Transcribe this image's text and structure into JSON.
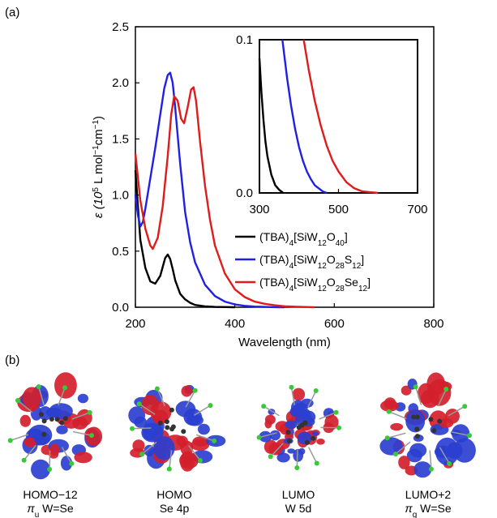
{
  "panel_a_label": "(a)",
  "panel_b_label": "(b)",
  "colors": {
    "SiW12O40": "#000000",
    "SiW12O28S12": "#1f1fe6",
    "SiW12O28Se12": "#e01b1b",
    "lobe_red": "#d3202c",
    "lobe_blue": "#2b3fcf",
    "atom_green": "#38c936",
    "atom_dark": "#333333"
  },
  "chart_data": [
    {
      "type": "line",
      "xlabel": "Wavelength (nm)",
      "ylabel_main": "ε (10",
      "ylabel_sup1": "5",
      "ylabel_mid": " L mol",
      "ylabel_sup2": "−1",
      "ylabel_cm": "cm",
      "ylabel_sup3": "−1",
      "ylabel_end": ")",
      "xlim": [
        200,
        800
      ],
      "ylim": [
        0,
        2.5
      ],
      "xticks": [
        "200",
        "400",
        "600",
        "800"
      ],
      "yticks": [
        "0.0",
        "0.5",
        "1.0",
        "1.5",
        "2.0",
        "2.5"
      ],
      "xtick_values": [
        200,
        400,
        600,
        800
      ],
      "ytick_values": [
        0,
        0.5,
        1.0,
        1.5,
        2.0,
        2.5
      ],
      "series": [
        {
          "name_parts": [
            "(TBA)",
            "4",
            "[SiW",
            "12",
            "O",
            "40",
            "]"
          ],
          "color_key": "SiW12O40",
          "x": [
            200,
            210,
            220,
            230,
            240,
            250,
            255,
            260,
            265,
            270,
            275,
            280,
            290,
            300,
            310,
            320,
            340,
            360,
            400
          ],
          "y": [
            1.22,
            0.6,
            0.35,
            0.23,
            0.21,
            0.28,
            0.36,
            0.44,
            0.47,
            0.43,
            0.34,
            0.24,
            0.12,
            0.07,
            0.04,
            0.02,
            0.008,
            0.003,
            0.0
          ]
        },
        {
          "name_parts": [
            "(TBA)",
            "4",
            "[SiW",
            "12",
            "O",
            "28",
            "S",
            "12",
            "]"
          ],
          "color_key": "SiW12O28S12",
          "x": [
            200,
            205,
            210,
            215,
            220,
            230,
            240,
            250,
            258,
            265,
            270,
            275,
            280,
            290,
            300,
            310,
            320,
            340,
            360,
            380,
            400,
            420,
            440,
            460,
            480,
            500
          ],
          "y": [
            1.0,
            0.82,
            0.72,
            0.76,
            0.88,
            1.15,
            1.42,
            1.72,
            1.95,
            2.07,
            2.09,
            2.0,
            1.78,
            1.28,
            0.85,
            0.58,
            0.4,
            0.2,
            0.1,
            0.05,
            0.025,
            0.012,
            0.006,
            0.003,
            0.001,
            0.0
          ]
        },
        {
          "name_parts": [
            "(TBA)",
            "4",
            "[SiW",
            "12",
            "O",
            "28",
            "Se",
            "12",
            "]"
          ],
          "color_key": "SiW12O28Se12",
          "x": [
            200,
            210,
            220,
            230,
            235,
            245,
            255,
            265,
            272,
            278,
            285,
            292,
            298,
            305,
            312,
            317,
            322,
            330,
            340,
            350,
            360,
            380,
            400,
            420,
            440,
            460,
            480,
            500,
            520,
            540,
            560
          ],
          "y": [
            1.37,
            0.95,
            0.7,
            0.55,
            0.52,
            0.62,
            0.9,
            1.35,
            1.72,
            1.88,
            1.84,
            1.68,
            1.64,
            1.78,
            1.94,
            1.96,
            1.84,
            1.48,
            1.08,
            0.78,
            0.55,
            0.3,
            0.16,
            0.09,
            0.05,
            0.03,
            0.017,
            0.009,
            0.005,
            0.002,
            0.0
          ]
        }
      ]
    },
    {
      "type": "line",
      "role": "inset",
      "xlim": [
        300,
        700
      ],
      "ylim": [
        0,
        0.1
      ],
      "xticks": [
        "300",
        "500",
        "700"
      ],
      "yticks": [
        "0.0",
        "0.1"
      ],
      "xtick_values": [
        300,
        500,
        700
      ],
      "ytick_values": [
        0,
        0.1
      ],
      "series": [
        {
          "color_key": "SiW12O40",
          "x": [
            300,
            305,
            310,
            315,
            320,
            330,
            340,
            350,
            360
          ],
          "y": [
            0.088,
            0.066,
            0.048,
            0.034,
            0.024,
            0.012,
            0.005,
            0.002,
            0.0
          ]
        },
        {
          "color_key": "SiW12O28S12",
          "x": [
            358,
            370,
            380,
            390,
            400,
            410,
            420,
            430,
            440,
            450,
            460,
            470
          ],
          "y": [
            0.1,
            0.075,
            0.057,
            0.042,
            0.03,
            0.021,
            0.014,
            0.009,
            0.005,
            0.003,
            0.001,
            0.0
          ]
        },
        {
          "color_key": "SiW12O28Se12",
          "x": [
            412,
            425,
            440,
            455,
            470,
            485,
            500,
            520,
            540,
            560,
            580,
            600
          ],
          "y": [
            0.1,
            0.08,
            0.06,
            0.044,
            0.031,
            0.021,
            0.014,
            0.007,
            0.003,
            0.001,
            0.0005,
            0.0
          ]
        }
      ]
    }
  ],
  "orbitals": [
    {
      "name": "HOMO−12",
      "sub_pre": "π",
      "sub_idx": "u",
      "sub_post": " W=Se"
    },
    {
      "name": "HOMO",
      "sub_pre": "Se 4p",
      "sub_idx": "",
      "sub_post": ""
    },
    {
      "name": "LUMO",
      "sub_pre": "W 5d",
      "sub_idx": "",
      "sub_post": ""
    },
    {
      "name": "LUMO+2",
      "sub_pre": "π",
      "sub_idx": "g",
      "sub_post": " W=Se"
    }
  ]
}
